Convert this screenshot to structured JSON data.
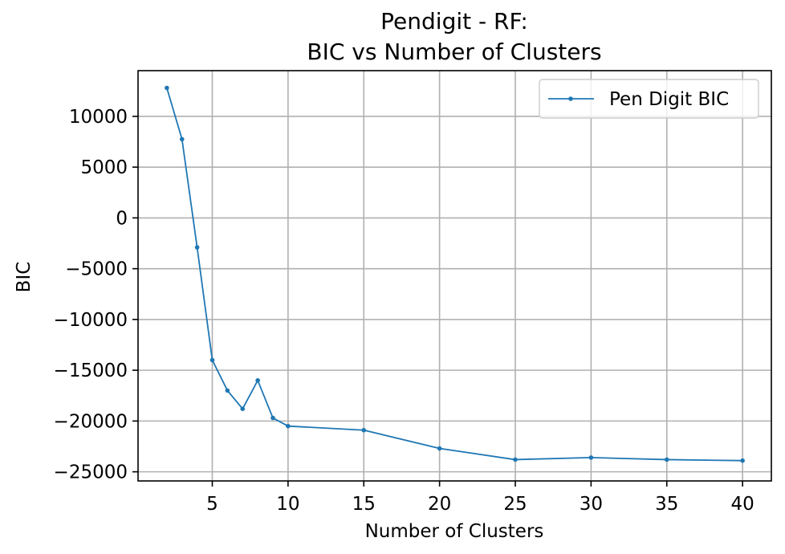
{
  "chart_data": {
    "type": "line",
    "title_lines": [
      "Pendigit - RF:",
      "BIC vs Number of Clusters"
    ],
    "xlabel": "Number of Clusters",
    "ylabel": "BIC",
    "xlim": [
      0.1,
      41.9
    ],
    "ylim": [
      -25900,
      14500
    ],
    "xticks": [
      5,
      10,
      15,
      20,
      25,
      30,
      35,
      40
    ],
    "xtick_labels": [
      "5",
      "10",
      "15",
      "20",
      "25",
      "30",
      "35",
      "40"
    ],
    "yticks": [
      10000,
      5000,
      0,
      -5000,
      -10000,
      -15000,
      -20000,
      -25000
    ],
    "ytick_labels": [
      "10000",
      "5000",
      "0",
      "−5000",
      "−10000",
      "−15000",
      "−20000",
      "−25000"
    ],
    "grid": true,
    "legend_position": "top-right",
    "series": [
      {
        "name": "Pen Digit BIC",
        "color": "#1f77b4",
        "marker": "circle",
        "x": [
          2,
          3,
          4,
          5,
          6,
          7,
          8,
          9,
          10,
          15,
          20,
          25,
          30,
          35,
          40
        ],
        "y": [
          12800,
          7750,
          -2900,
          -14000,
          -17000,
          -18800,
          -16000,
          -19700,
          -20500,
          -20900,
          -22700,
          -23800,
          -23600,
          -23800,
          -23900
        ]
      }
    ]
  }
}
